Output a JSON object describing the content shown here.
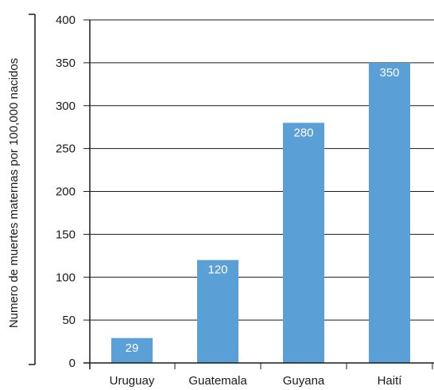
{
  "chart_data": {
    "type": "bar",
    "categories": [
      "Uruguay",
      "Guatemala",
      "Guyana",
      "Haití"
    ],
    "values": [
      29,
      120,
      280,
      350
    ],
    "data_labels": [
      "29",
      "120",
      "280",
      "350"
    ],
    "title": "",
    "xlabel": "",
    "ylabel": "Numero de muertes maternas por 100,000 nacidos",
    "ylim": [
      0,
      400
    ],
    "yticks": [
      0,
      50,
      100,
      150,
      200,
      250,
      300,
      350,
      400
    ],
    "ytick_labels": [
      "0",
      "50",
      "100",
      "150",
      "200",
      "250",
      "300",
      "350",
      "400"
    ],
    "grid": true,
    "legend": "none",
    "colors": {
      "bar": "#5a9fd6",
      "bar_label": "#ffffff",
      "axis": "#1a1a1a",
      "grid": "#1a1a1a"
    }
  }
}
